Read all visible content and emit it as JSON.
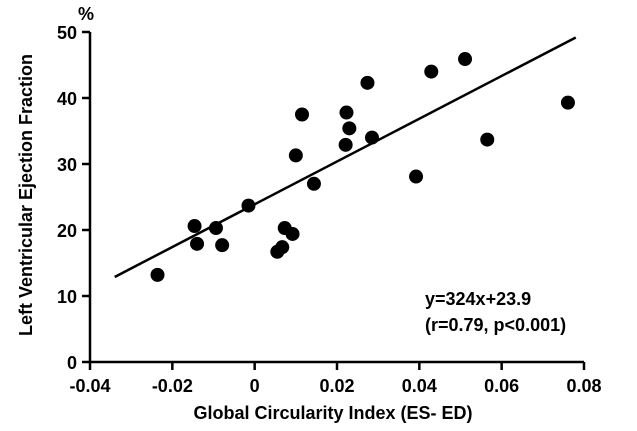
{
  "chart_data": {
    "type": "scatter",
    "xlabel": "Global Circularity Index (ES- ED)",
    "ylabel": "Left Ventricular Ejection Fraction",
    "y_unit": "%",
    "xlim": [
      -0.04,
      0.08
    ],
    "ylim": [
      0,
      50
    ],
    "x_ticks": [
      -0.04,
      -0.02,
      0,
      0.02,
      0.04,
      0.06,
      0.08
    ],
    "x_tick_labels": [
      "-0.04",
      "-0.02",
      "0",
      "0.02",
      "0.04",
      "0.06",
      "0.08"
    ],
    "y_ticks": [
      0,
      10,
      20,
      30,
      40,
      50
    ],
    "y_tick_labels": [
      "0",
      "10",
      "20",
      "30",
      "40",
      "50"
    ],
    "grid": false,
    "points": [
      {
        "x": -0.0236,
        "y": 13.2
      },
      {
        "x": -0.0146,
        "y": 20.6
      },
      {
        "x": -0.014,
        "y": 17.9
      },
      {
        "x": -0.0094,
        "y": 20.3
      },
      {
        "x": -0.0079,
        "y": 17.7
      },
      {
        "x": -0.0015,
        "y": 23.7
      },
      {
        "x": 0.0055,
        "y": 16.7
      },
      {
        "x": 0.0067,
        "y": 17.4
      },
      {
        "x": 0.0073,
        "y": 20.3
      },
      {
        "x": 0.0092,
        "y": 19.4
      },
      {
        "x": 0.01,
        "y": 31.3
      },
      {
        "x": 0.0115,
        "y": 37.5
      },
      {
        "x": 0.0144,
        "y": 27.0
      },
      {
        "x": 0.0221,
        "y": 32.9
      },
      {
        "x": 0.0223,
        "y": 37.8
      },
      {
        "x": 0.023,
        "y": 35.4
      },
      {
        "x": 0.0274,
        "y": 42.3
      },
      {
        "x": 0.0285,
        "y": 34.0
      },
      {
        "x": 0.0392,
        "y": 28.1
      },
      {
        "x": 0.0429,
        "y": 44.0
      },
      {
        "x": 0.0511,
        "y": 45.9
      },
      {
        "x": 0.0565,
        "y": 33.7
      },
      {
        "x": 0.0761,
        "y": 39.3
      }
    ],
    "regression": {
      "slope": 324,
      "intercept": 23.9,
      "x_range": [
        -0.034,
        0.078
      ]
    },
    "annotation_line1": "y=324x+23.9",
    "annotation_line2": "(r=0.79, p<0.001)"
  }
}
